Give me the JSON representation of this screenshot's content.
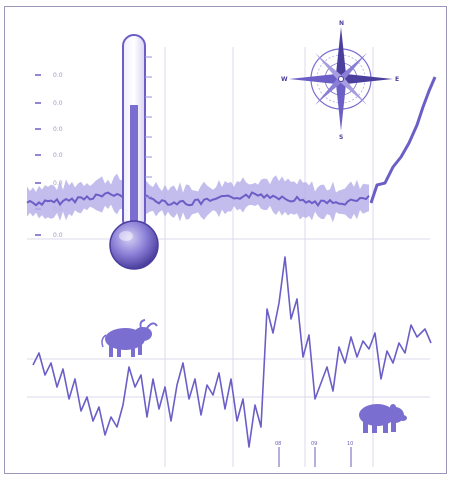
{
  "colors": {
    "accent": "#6b5fc7",
    "accent_dark": "#4b3f9e",
    "accent_light": "#c9c3ee",
    "grid": "#d9d7ea",
    "band": "#a79ee0",
    "frame": "#9a98b8"
  },
  "thermometer": {
    "tick_labels": [
      "0.0",
      "0.0",
      "0.0",
      "0.0",
      "0.0",
      "0.0",
      "0.0"
    ]
  },
  "compass": {
    "north": "N",
    "east": "E",
    "south": "S",
    "west": "W"
  },
  "icons": {
    "thermometer": "thermometer-icon",
    "compass": "compass-rose-icon",
    "bull": "bull-icon",
    "bear": "bear-icon"
  },
  "bottom_labels": [
    "08",
    "09",
    "10"
  ]
}
